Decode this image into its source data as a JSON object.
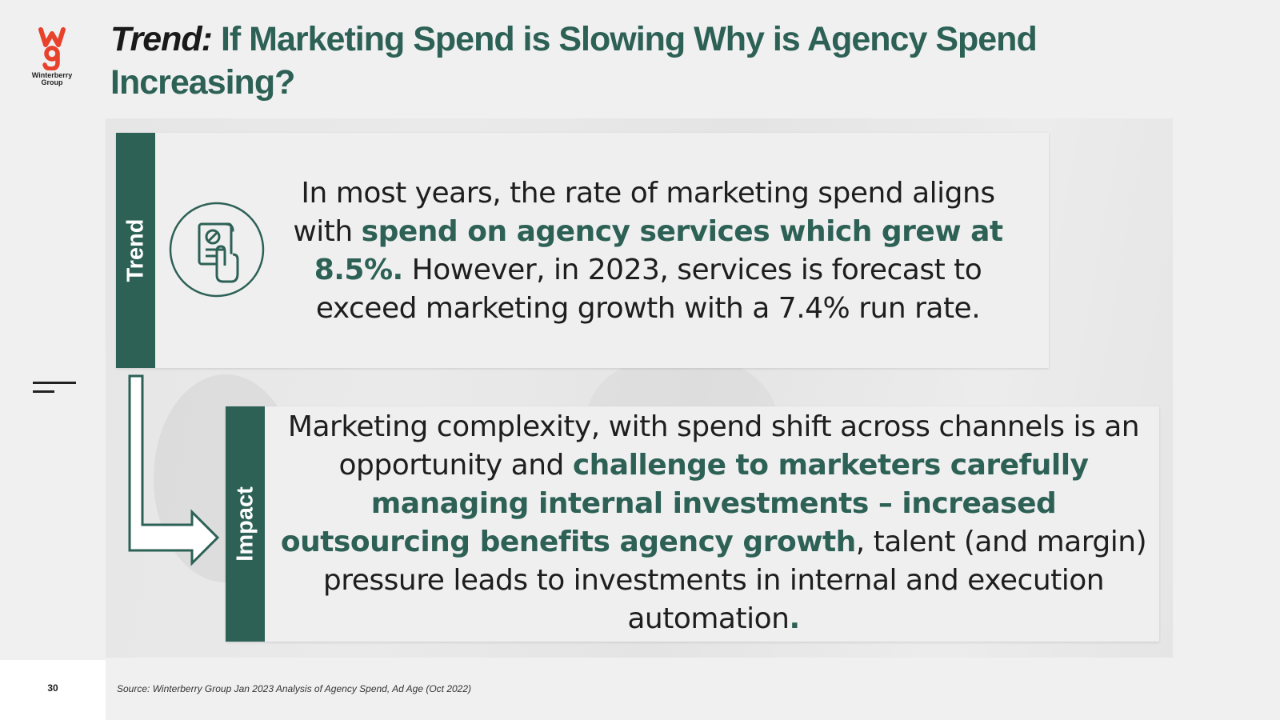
{
  "logo": {
    "text": "Winterberry Group",
    "icon": "wg-logo-icon",
    "color": "#e8412c"
  },
  "title": {
    "prefix": "Trend:",
    "main": "If Marketing Spend is Slowing Why is Agency Spend Increasing?"
  },
  "trend_card": {
    "tab_label": "Trend",
    "icon": "document-hand-icon",
    "text": {
      "part1": "In most years, the rate of marketing spend aligns with ",
      "highlight": "spend on agency services which grew at 8.5%.",
      "part2": " However, in 2023, services is forecast to exceed marketing growth with a 7.4% run rate."
    }
  },
  "impact_card": {
    "tab_label": "Impact",
    "text": {
      "part1": "Marketing complexity, with spend shift across channels is an opportunity and ",
      "highlight": "challenge to marketers carefully managing internal investments – increased outsourcing benefits agency growth",
      "part2": ", talent (and margin) pressure leads to investments in internal and execution automation",
      "end_highlight": "."
    }
  },
  "footer": {
    "page_number": "30",
    "source": "Source: Winterberry Group Jan 2023 Analysis of  Agency Spend, Ad Age (Oct 2022)"
  },
  "colors": {
    "accent": "#2d6156",
    "background": "#f0f0f0",
    "logo_red": "#e8412c"
  }
}
